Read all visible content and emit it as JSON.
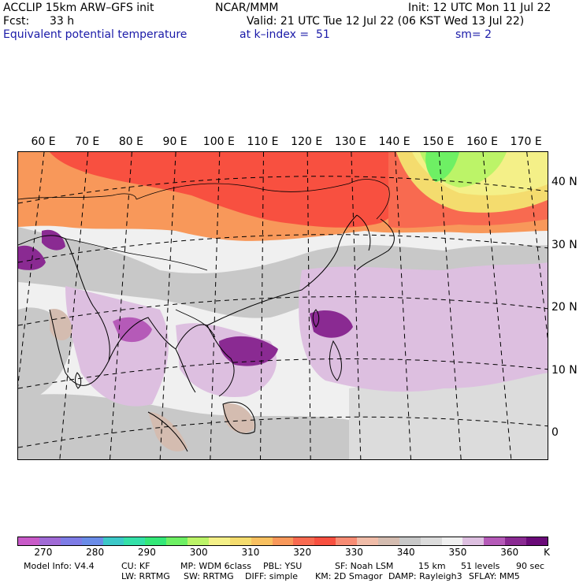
{
  "header": {
    "model": "ACCLIP 15km ARW–GFS init",
    "org": "NCAR/MMM",
    "init": "Init: 12 UTC Mon 11 Jul 22",
    "fcst_label": "Fcst:",
    "fcst_value": "33 h",
    "valid": "Valid: 21 UTC Tue 12 Jul 22 (06 KST Wed 13 Jul 22)",
    "field": "Equivalent potential temperature",
    "level": "at k–index =  51",
    "smoothing": "sm= 2"
  },
  "lon_labels": [
    {
      "text": "60 E",
      "lon": 60
    },
    {
      "text": "70 E",
      "lon": 70
    },
    {
      "text": "80 E",
      "lon": 80
    },
    {
      "text": "90 E",
      "lon": 90
    },
    {
      "text": "100 E",
      "lon": 100
    },
    {
      "text": "110 E",
      "lon": 110
    },
    {
      "text": "120 E",
      "lon": 120
    },
    {
      "text": "130 E",
      "lon": 130
    },
    {
      "text": "140 E",
      "lon": 140
    },
    {
      "text": "150 E",
      "lon": 150
    },
    {
      "text": "160 E",
      "lon": 160
    },
    {
      "text": "170 E",
      "lon": 170
    }
  ],
  "lat_labels": [
    {
      "text": "40 N",
      "lat": 40
    },
    {
      "text": "30 N",
      "lat": 30
    },
    {
      "text": "20 N",
      "lat": 20
    },
    {
      "text": "10 N",
      "lat": 10
    },
    {
      "text": "0",
      "lat": 0
    }
  ],
  "colorbar": {
    "colors": [
      "#c85ac8",
      "#a06ad6",
      "#7e7ce6",
      "#6a8ce8",
      "#3cc8c8",
      "#34e0a8",
      "#34e878",
      "#6ef064",
      "#bcf468",
      "#f4f088",
      "#f4dc6e",
      "#f8c060",
      "#f8985a",
      "#f86a50",
      "#f85040",
      "#f88c74",
      "#f0bca8",
      "#d4bcb0",
      "#c8c8c8",
      "#dcdcdc",
      "#f0f0f0",
      "#ddbfe0",
      "#b55ab8",
      "#8a2a92",
      "#6a0a78"
    ],
    "tick_labels": [
      "270",
      "280",
      "290",
      "300",
      "310",
      "320",
      "330",
      "340",
      "350",
      "360"
    ],
    "tick_values": [
      270,
      280,
      290,
      300,
      310,
      320,
      330,
      340,
      350,
      360
    ],
    "range": [
      265,
      367.5
    ],
    "unit": "K"
  },
  "footer": {
    "model_info": "Model Info: V4.4",
    "cu": "CU: KF",
    "mp": "MP: WDM 6class",
    "pbl": "PBL: YSU",
    "sf": "SF: Noah LSM",
    "dx": "15 km",
    "levels": "51 levels",
    "dt": "90 sec",
    "lw": "LW: RRTMG",
    "sw": "SW: RRTMG",
    "diff": "DIFF: simple",
    "km": "KM: 2D Smagor",
    "damp": "DAMP: Rayleigh3",
    "sflay": "SFLAY: MM5"
  }
}
